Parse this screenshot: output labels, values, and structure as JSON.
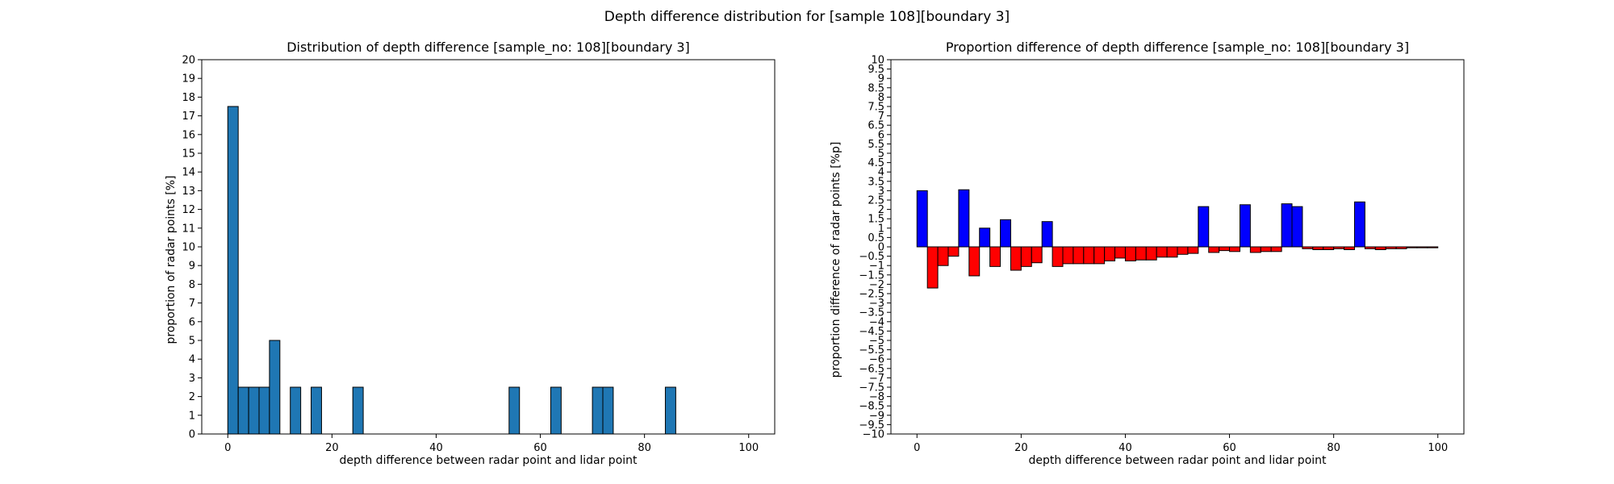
{
  "suptitle": "Depth difference distribution for [sample 108][boundary 3]",
  "chart_data": [
    {
      "type": "bar",
      "title": "Distribution of depth difference [sample_no: 108][boundary 3]",
      "xlabel": "depth difference between radar point and lidar point",
      "ylabel": "proportion of radar points [%]",
      "xlim": [
        -5,
        105
      ],
      "ylim": [
        0,
        20
      ],
      "xticks": [
        0,
        20,
        40,
        60,
        80,
        100
      ],
      "yticks": [
        0,
        1,
        2,
        3,
        4,
        5,
        6,
        7,
        8,
        9,
        10,
        11,
        12,
        13,
        14,
        15,
        16,
        17,
        18,
        19,
        20
      ],
      "bin_width": 2,
      "bin_starts": [
        0,
        2,
        4,
        6,
        8,
        12,
        16,
        24,
        54,
        62,
        70,
        72,
        84
      ],
      "values": [
        17.5,
        2.5,
        2.5,
        2.5,
        5.0,
        2.5,
        2.5,
        2.5,
        2.5,
        2.5,
        2.5,
        2.5,
        2.5
      ],
      "bar_color": "#1f77b4",
      "edge_color": "#000000"
    },
    {
      "type": "bar",
      "title": "Proportion difference of depth difference [sample_no: 108][boundary 3]",
      "xlabel": "depth difference between radar point and lidar point",
      "ylabel": "proportion difference of radar points [%p]",
      "xlim": [
        -5,
        105
      ],
      "ylim": [
        -10,
        10
      ],
      "xticks": [
        0,
        20,
        40,
        60,
        80,
        100
      ],
      "ytick_step": 0.5,
      "bin_width": 2,
      "bin_starts": [
        0,
        2,
        4,
        6,
        8,
        10,
        12,
        14,
        16,
        18,
        20,
        22,
        24,
        26,
        28,
        30,
        32,
        34,
        36,
        38,
        40,
        42,
        44,
        46,
        48,
        50,
        52,
        54,
        56,
        58,
        60,
        62,
        64,
        66,
        68,
        70,
        72,
        74,
        76,
        78,
        80,
        82,
        84,
        86,
        88,
        90,
        92,
        94,
        96,
        98
      ],
      "values": [
        3.0,
        -2.2,
        -1.0,
        -0.5,
        3.05,
        -1.55,
        1.0,
        -1.05,
        1.45,
        -1.25,
        -1.05,
        -0.85,
        1.35,
        -1.05,
        -0.9,
        -0.9,
        -0.9,
        -0.9,
        -0.75,
        -0.6,
        -0.75,
        -0.7,
        -0.7,
        -0.55,
        -0.55,
        -0.4,
        -0.35,
        2.15,
        -0.3,
        -0.2,
        -0.25,
        2.25,
        -0.3,
        -0.25,
        -0.25,
        2.3,
        2.15,
        -0.1,
        -0.15,
        -0.15,
        -0.1,
        -0.15,
        2.4,
        -0.1,
        -0.15,
        -0.1,
        -0.1,
        -0.05,
        -0.05,
        -0.05
      ],
      "positive_color": "#0000ff",
      "negative_color": "#ff0000",
      "edge_color": "#000000"
    }
  ]
}
